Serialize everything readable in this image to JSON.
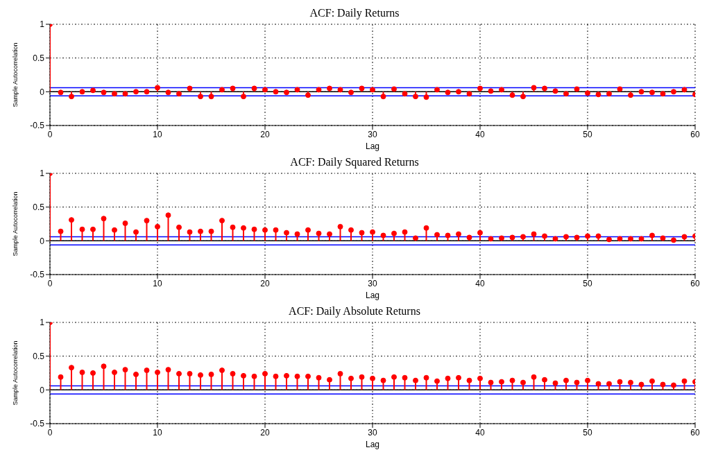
{
  "chart_data": [
    {
      "type": "lollipop",
      "title": "ACF: Daily Returns",
      "xlabel": "Lag",
      "ylabel": "Sample Autocorrelation",
      "color": "#ff0000",
      "marker": "circle",
      "grid": true,
      "xlim": [
        0,
        60
      ],
      "xticks": [
        0,
        10,
        20,
        30,
        40,
        50,
        60
      ],
      "ylim": [
        -0.5,
        1
      ],
      "yticks": [
        -0.5,
        0,
        0.5,
        1
      ],
      "x": [
        0,
        1,
        2,
        3,
        4,
        5,
        6,
        7,
        8,
        9,
        10,
        11,
        12,
        13,
        14,
        15,
        16,
        17,
        18,
        19,
        20,
        21,
        22,
        23,
        24,
        25,
        26,
        27,
        28,
        29,
        30,
        31,
        32,
        33,
        34,
        35,
        36,
        37,
        38,
        39,
        40,
        41,
        42,
        43,
        44,
        45,
        46,
        47,
        48,
        49,
        50,
        51,
        52,
        53,
        54,
        55,
        56,
        57,
        58,
        59,
        60
      ],
      "values": [
        1,
        -0.01,
        -0.07,
        0,
        0.02,
        -0.01,
        -0.03,
        -0.03,
        0,
        0,
        0.06,
        -0.01,
        -0.03,
        0.05,
        -0.07,
        -0.07,
        0.03,
        0.05,
        -0.07,
        0.05,
        0.03,
        0,
        -0.01,
        0.03,
        -0.05,
        0.03,
        0.05,
        0.03,
        -0.01,
        0.05,
        0.03,
        -0.07,
        0.04,
        -0.03,
        -0.07,
        -0.08,
        0.03,
        -0.01,
        0,
        -0.03,
        0.05,
        0.01,
        0.03,
        -0.05,
        -0.07,
        0.06,
        0.05,
        0.01,
        -0.03,
        0.04,
        -0.02,
        -0.04,
        -0.03,
        0.04,
        -0.05,
        0,
        -0.01,
        -0.03,
        0,
        0.03,
        -0.04
      ],
      "ref_lines": [
        {
          "axis": "y",
          "value": 0,
          "color": "#000000"
        },
        {
          "axis": "y",
          "value": 0.06,
          "color": "#0000ff"
        },
        {
          "axis": "y",
          "value": -0.06,
          "color": "#0000ff"
        }
      ]
    },
    {
      "type": "lollipop",
      "title": "ACF: Daily Squared Returns",
      "xlabel": "Lag",
      "ylabel": "Sample Autocorrelation",
      "color": "#ff0000",
      "marker": "circle",
      "grid": true,
      "xlim": [
        0,
        60
      ],
      "xticks": [
        0,
        10,
        20,
        30,
        40,
        50,
        60
      ],
      "ylim": [
        -0.5,
        1
      ],
      "yticks": [
        -0.5,
        0,
        0.5,
        1
      ],
      "x": [
        0,
        1,
        2,
        3,
        4,
        5,
        6,
        7,
        8,
        9,
        10,
        11,
        12,
        13,
        14,
        15,
        16,
        17,
        18,
        19,
        20,
        21,
        22,
        23,
        24,
        25,
        26,
        27,
        28,
        29,
        30,
        31,
        32,
        33,
        34,
        35,
        36,
        37,
        38,
        39,
        40,
        41,
        42,
        43,
        44,
        45,
        46,
        47,
        48,
        49,
        50,
        51,
        52,
        53,
        54,
        55,
        56,
        57,
        58,
        59,
        60
      ],
      "values": [
        1,
        0.14,
        0.31,
        0.17,
        0.17,
        0.33,
        0.16,
        0.26,
        0.13,
        0.3,
        0.21,
        0.38,
        0.2,
        0.13,
        0.14,
        0.14,
        0.3,
        0.2,
        0.19,
        0.17,
        0.16,
        0.16,
        0.12,
        0.1,
        0.16,
        0.11,
        0.1,
        0.21,
        0.16,
        0.12,
        0.13,
        0.08,
        0.11,
        0.13,
        0.04,
        0.19,
        0.09,
        0.08,
        0.1,
        0.05,
        0.12,
        0.03,
        0.04,
        0.05,
        0.06,
        0.1,
        0.07,
        0.03,
        0.06,
        0.05,
        0.07,
        0.07,
        0.02,
        0.03,
        0.03,
        0.03,
        0.08,
        0.04,
        0.01,
        0.06,
        0.07
      ],
      "ref_lines": [
        {
          "axis": "y",
          "value": 0,
          "color": "#000000"
        },
        {
          "axis": "y",
          "value": 0.06,
          "color": "#0000ff"
        },
        {
          "axis": "y",
          "value": -0.06,
          "color": "#0000ff"
        }
      ]
    },
    {
      "type": "lollipop",
      "title": "ACF: Daily Absolute Returns",
      "xlabel": "Lag",
      "ylabel": "Sample Autocorrelation",
      "color": "#ff0000",
      "marker": "circle",
      "grid": true,
      "xlim": [
        0,
        60
      ],
      "xticks": [
        0,
        10,
        20,
        30,
        40,
        50,
        60
      ],
      "ylim": [
        -0.5,
        1
      ],
      "yticks": [
        -0.5,
        0,
        0.5,
        1
      ],
      "x": [
        0,
        1,
        2,
        3,
        4,
        5,
        6,
        7,
        8,
        9,
        10,
        11,
        12,
        13,
        14,
        15,
        16,
        17,
        18,
        19,
        20,
        21,
        22,
        23,
        24,
        25,
        26,
        27,
        28,
        29,
        30,
        31,
        32,
        33,
        34,
        35,
        36,
        37,
        38,
        39,
        40,
        41,
        42,
        43,
        44,
        45,
        46,
        47,
        48,
        49,
        50,
        51,
        52,
        53,
        54,
        55,
        56,
        57,
        58,
        59,
        60
      ],
      "values": [
        1,
        0.19,
        0.33,
        0.26,
        0.25,
        0.35,
        0.26,
        0.3,
        0.23,
        0.29,
        0.26,
        0.3,
        0.24,
        0.24,
        0.22,
        0.23,
        0.29,
        0.24,
        0.21,
        0.2,
        0.24,
        0.2,
        0.21,
        0.2,
        0.2,
        0.18,
        0.15,
        0.24,
        0.17,
        0.19,
        0.17,
        0.14,
        0.19,
        0.18,
        0.14,
        0.18,
        0.13,
        0.17,
        0.18,
        0.14,
        0.17,
        0.11,
        0.12,
        0.14,
        0.11,
        0.19,
        0.15,
        0.1,
        0.14,
        0.11,
        0.14,
        0.09,
        0.09,
        0.12,
        0.11,
        0.08,
        0.13,
        0.08,
        0.07,
        0.13,
        0.12
      ],
      "ref_lines": [
        {
          "axis": "y",
          "value": 0,
          "color": "#000000"
        },
        {
          "axis": "y",
          "value": 0.06,
          "color": "#0000ff"
        },
        {
          "axis": "y",
          "value": -0.06,
          "color": "#0000ff"
        }
      ]
    }
  ]
}
